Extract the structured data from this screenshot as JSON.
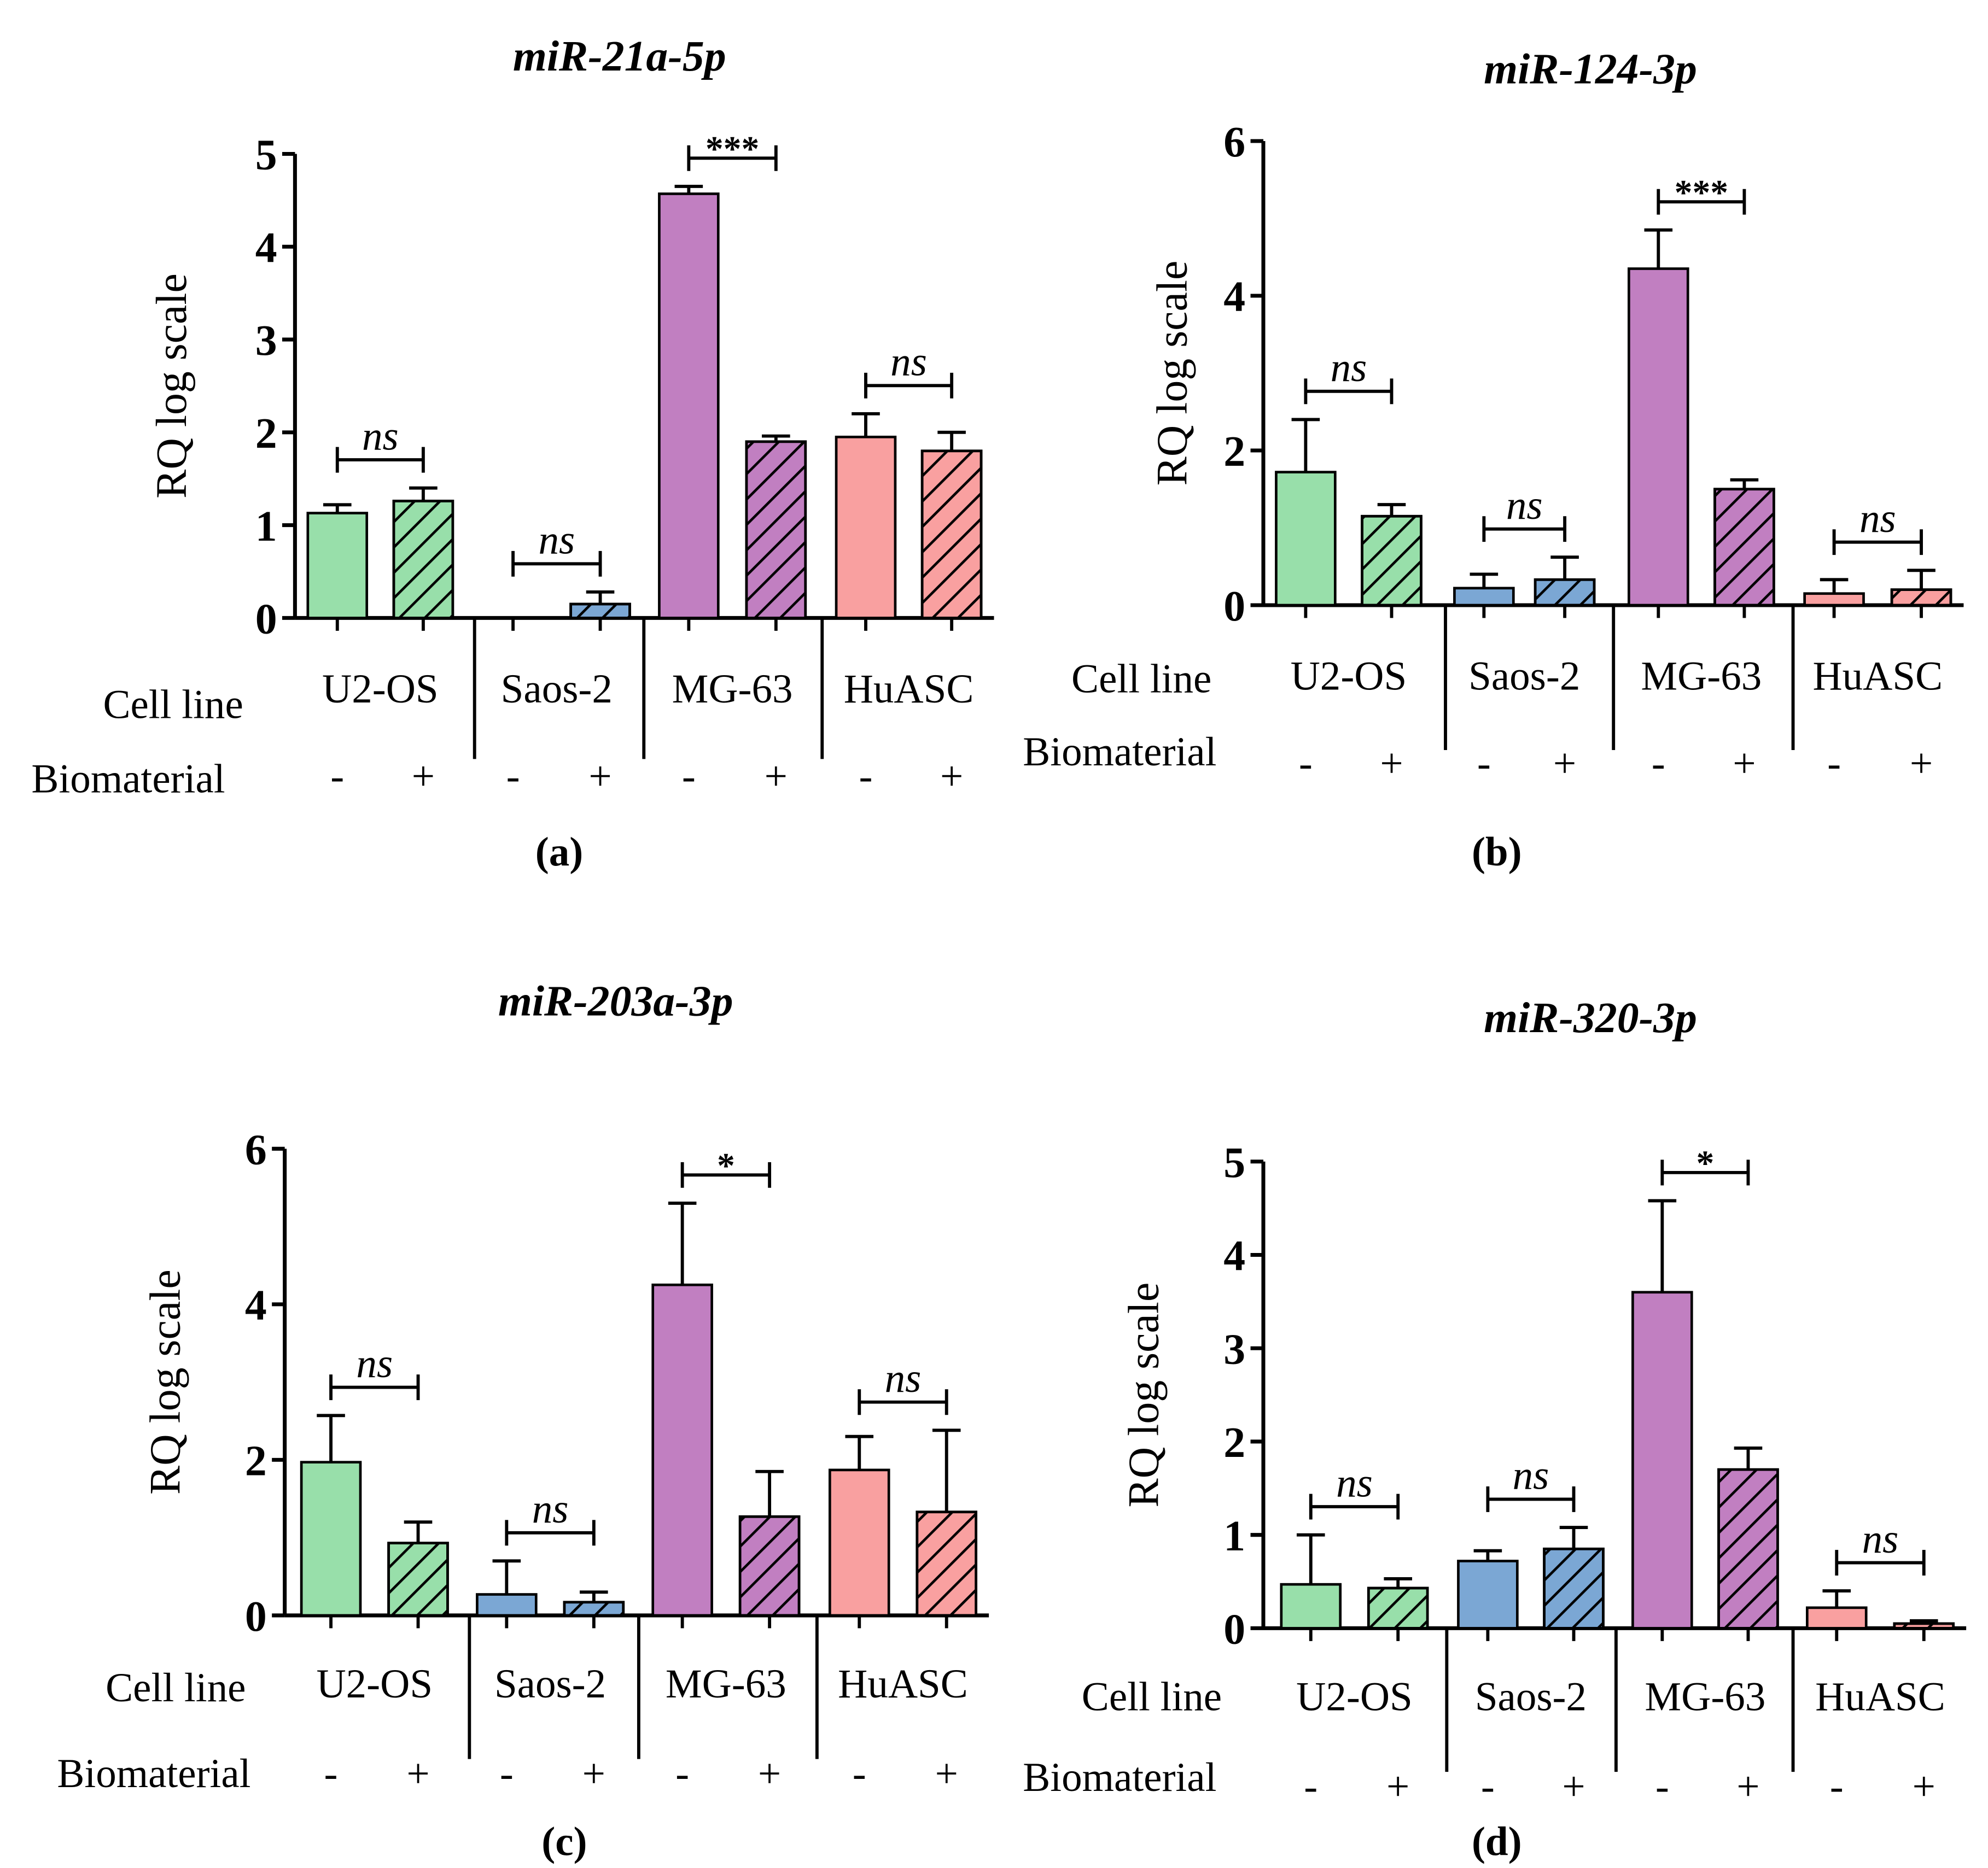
{
  "chart_data": [
    {
      "type": "bar",
      "panel": "(a)",
      "title": "miR-21a-5p",
      "ylabel": "RQ log scale",
      "ylim": [
        0,
        5
      ],
      "yticks": [
        "0",
        "1",
        "2",
        "3",
        "4",
        "5"
      ],
      "row_labels": {
        "cell_line": "Cell line",
        "biomaterial": "Biomaterial"
      },
      "groups": [
        "U2-OS",
        "Saos-2",
        "MG-63",
        "HuASC"
      ],
      "biomaterial_signs": [
        "-",
        "+"
      ],
      "colors": [
        "#98dfaa",
        "#7ba7d4",
        "#c17fc1",
        "#f9a0a0"
      ],
      "series": [
        {
          "name": "Biomaterial -",
          "values": [
            1.13,
            0.0,
            4.57,
            1.95
          ],
          "error_upper": [
            1.22,
            0.0,
            4.65,
            2.2
          ]
        },
        {
          "name": "Biomaterial +",
          "values": [
            1.26,
            0.15,
            1.9,
            1.8
          ],
          "error_upper": [
            1.4,
            0.28,
            1.96,
            2.0
          ]
        }
      ],
      "significance": [
        "ns",
        "ns",
        "***",
        "ns"
      ]
    },
    {
      "type": "bar",
      "panel": "(b)",
      "title": "miR-124-3p",
      "ylabel": "RQ log scale",
      "ylim": [
        0,
        6
      ],
      "yticks": [
        "0",
        "2",
        "4",
        "6"
      ],
      "row_labels": {
        "cell_line": "Cell line",
        "biomaterial": "Biomaterial"
      },
      "groups": [
        "U2-OS",
        "Saos-2",
        "MG-63",
        "HuASC"
      ],
      "biomaterial_signs": [
        "-",
        "+"
      ],
      "colors": [
        "#98dfaa",
        "#7ba7d4",
        "#c17fc1",
        "#f9a0a0"
      ],
      "series": [
        {
          "name": "Biomaterial -",
          "values": [
            1.72,
            0.22,
            4.35,
            0.15
          ],
          "error_upper": [
            2.4,
            0.4,
            4.85,
            0.33
          ]
        },
        {
          "name": "Biomaterial +",
          "values": [
            1.15,
            0.33,
            1.5,
            0.2
          ],
          "error_upper": [
            1.3,
            0.62,
            1.62,
            0.45
          ]
        }
      ],
      "significance": [
        "ns",
        "ns",
        "***",
        "ns"
      ]
    },
    {
      "type": "bar",
      "panel": "(c)",
      "title": "miR-203a-3p",
      "ylabel": "RQ log scale",
      "ylim": [
        0,
        6
      ],
      "yticks": [
        "0",
        "2",
        "4",
        "6"
      ],
      "row_labels": {
        "cell_line": "Cell line",
        "biomaterial": "Biomaterial"
      },
      "groups": [
        "U2-OS",
        "Saos-2",
        "MG-63",
        "HuASC"
      ],
      "biomaterial_signs": [
        "-",
        "+"
      ],
      "colors": [
        "#98dfaa",
        "#7ba7d4",
        "#c17fc1",
        "#f9a0a0"
      ],
      "series": [
        {
          "name": "Biomaterial -",
          "values": [
            1.97,
            0.27,
            4.25,
            1.87
          ],
          "error_upper": [
            2.57,
            0.7,
            5.3,
            2.3
          ]
        },
        {
          "name": "Biomaterial +",
          "values": [
            0.93,
            0.17,
            1.27,
            1.33
          ],
          "error_upper": [
            1.2,
            0.3,
            1.85,
            2.38
          ]
        }
      ],
      "significance": [
        "ns",
        "ns",
        "*",
        "ns"
      ]
    },
    {
      "type": "bar",
      "panel": "(d)",
      "title": "miR-320-3p",
      "ylabel": "RQ log scale",
      "ylim": [
        0,
        5
      ],
      "yticks": [
        "0",
        "1",
        "2",
        "3",
        "4",
        "5"
      ],
      "row_labels": {
        "cell_line": "Cell line",
        "biomaterial": "Biomaterial"
      },
      "groups": [
        "U2-OS",
        "Saos-2",
        "MG-63",
        "HuASC"
      ],
      "biomaterial_signs": [
        "-",
        "+"
      ],
      "colors": [
        "#98dfaa",
        "#7ba7d4",
        "#c17fc1",
        "#f9a0a0"
      ],
      "series": [
        {
          "name": "Biomaterial -",
          "values": [
            0.47,
            0.72,
            3.6,
            0.22
          ],
          "error_upper": [
            1.0,
            0.83,
            4.58,
            0.4
          ]
        },
        {
          "name": "Biomaterial +",
          "values": [
            0.43,
            0.85,
            1.7,
            0.05
          ],
          "error_upper": [
            0.53,
            1.08,
            1.93,
            0.08
          ]
        }
      ],
      "significance": [
        "ns",
        "ns",
        "*",
        "ns"
      ]
    }
  ]
}
